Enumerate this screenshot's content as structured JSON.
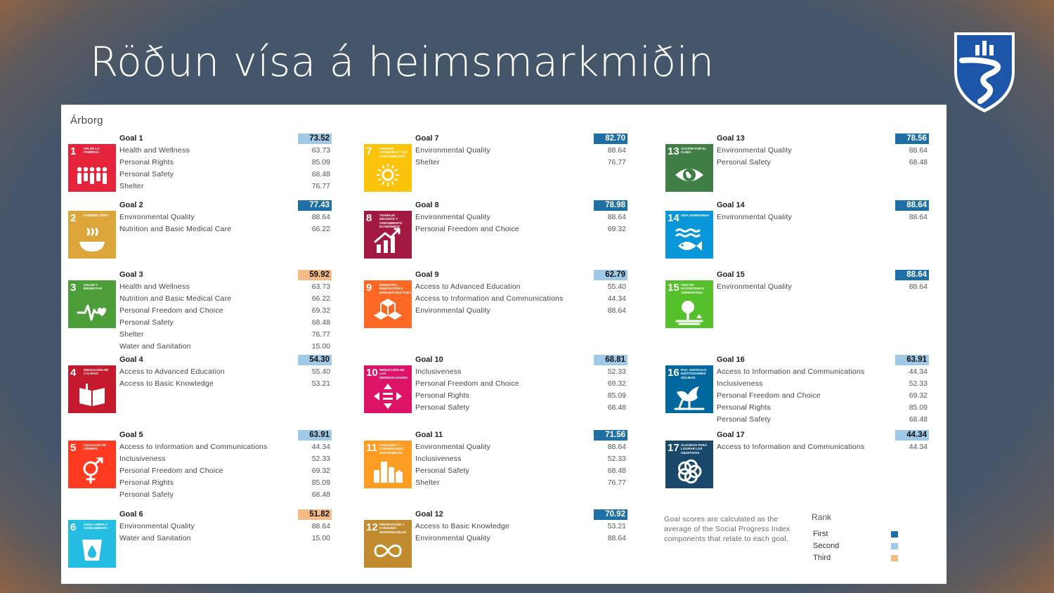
{
  "slide": {
    "title": "Röðun vísa á heimsmarkmiðin"
  },
  "panel": {
    "title": "Árborg"
  },
  "colors": {
    "rank1": "#1f6fa7",
    "rank2": "#9fc9e6",
    "rank3": "#f5bb86"
  },
  "goals": [
    {
      "name": "Goal 1",
      "score": "73.52",
      "rank": 2,
      "icon_num": "1",
      "icon_caption": "Fin de la pobreza",
      "icon_color": "#e5243b",
      "icon": "people-icon",
      "components": [
        {
          "label": "Health and Wellness",
          "value": "63.73"
        },
        {
          "label": "Personal Rights",
          "value": "85.09"
        },
        {
          "label": "Personal Safety",
          "value": "68.48"
        },
        {
          "label": "Shelter",
          "value": "76.77"
        }
      ]
    },
    {
      "name": "Goal 2",
      "score": "77.43",
      "rank": 1,
      "icon_num": "2",
      "icon_caption": "Hambre cero",
      "icon_color": "#dda63a",
      "icon": "food-bowl-icon",
      "components": [
        {
          "label": "Environmental Quality",
          "value": "88.64"
        },
        {
          "label": "Nutrition and Basic Medical Care",
          "value": "66.22"
        }
      ]
    },
    {
      "name": "Goal 3",
      "score": "59.92",
      "rank": 3,
      "icon_num": "3",
      "icon_caption": "Salud y bienestar",
      "icon_color": "#4c9f38",
      "icon": "heartbeat-icon",
      "components": [
        {
          "label": "Health and Wellness",
          "value": "63.73"
        },
        {
          "label": "Nutrition and Basic Medical Care",
          "value": "66.22"
        },
        {
          "label": "Personal Freedom and Choice",
          "value": "69.32"
        },
        {
          "label": "Personal Safety",
          "value": "68.48"
        },
        {
          "label": "Shelter",
          "value": "76.77"
        },
        {
          "label": "Water and Sanitation",
          "value": "15.00"
        }
      ]
    },
    {
      "name": "Goal 4",
      "score": "54.30",
      "rank": 2,
      "icon_num": "4",
      "icon_caption": "Educación de calidad",
      "icon_color": "#c5192d",
      "icon": "book-icon",
      "components": [
        {
          "label": "Access to Advanced Education",
          "value": "55.40"
        },
        {
          "label": "Access to Basic Knowledge",
          "value": "53.21"
        }
      ]
    },
    {
      "name": "Goal 5",
      "score": "63.91",
      "rank": 2,
      "icon_num": "5",
      "icon_caption": "Igualdad de género",
      "icon_color": "#ff3a21",
      "icon": "gender-icon",
      "components": [
        {
          "label": "Access to Information and Communications",
          "value": "44.34"
        },
        {
          "label": "Inclusiveness",
          "value": "52.33"
        },
        {
          "label": "Personal Freedom and Choice",
          "value": "69.32"
        },
        {
          "label": "Personal Rights",
          "value": "85.09"
        },
        {
          "label": "Personal Safety",
          "value": "68.48"
        }
      ]
    },
    {
      "name": "Goal 6",
      "score": "51.82",
      "rank": 3,
      "icon_num": "6",
      "icon_caption": "Agua limpia y saneamiento",
      "icon_color": "#26bde2",
      "icon": "water-drop-icon",
      "components": [
        {
          "label": "Environmental Quality",
          "value": "88.64"
        },
        {
          "label": "Water and Sanitation",
          "value": "15.00"
        }
      ]
    },
    {
      "name": "Goal 7",
      "score": "82.70",
      "rank": 1,
      "icon_num": "7",
      "icon_caption": "Energía asequible y no contaminante",
      "icon_color": "#fcc30b",
      "icon": "sun-icon",
      "components": [
        {
          "label": "Environmental Quality",
          "value": "88.64"
        },
        {
          "label": "Shelter",
          "value": "76.77"
        }
      ]
    },
    {
      "name": "Goal 8",
      "score": "78.98",
      "rank": 1,
      "icon_num": "8",
      "icon_caption": "Trabajo decente y crecimiento económico",
      "icon_color": "#a21942",
      "icon": "growth-chart-icon",
      "components": [
        {
          "label": "Environmental Quality",
          "value": "88.64"
        },
        {
          "label": "Personal Freedom and Choice",
          "value": "69.32"
        }
      ]
    },
    {
      "name": "Goal 9",
      "score": "62.79",
      "rank": 2,
      "icon_num": "9",
      "icon_caption": "Industria, innovación e infraestructura",
      "icon_color": "#fd6925",
      "icon": "cubes-icon",
      "components": [
        {
          "label": "Access to Advanced Education",
          "value": "55.40"
        },
        {
          "label": "Access to Information and Communications",
          "value": "44.34"
        },
        {
          "label": "Environmental Quality",
          "value": "88.64"
        }
      ]
    },
    {
      "name": "Goal 10",
      "score": "68.81",
      "rank": 2,
      "icon_num": "10",
      "icon_caption": "Reducción de las desigualdades",
      "icon_color": "#dd1367",
      "icon": "equality-icon",
      "components": [
        {
          "label": "Inclusiveness",
          "value": "52.33"
        },
        {
          "label": "Personal Freedom and Choice",
          "value": "69.32"
        },
        {
          "label": "Personal Rights",
          "value": "85.09"
        },
        {
          "label": "Personal Safety",
          "value": "68.48"
        }
      ]
    },
    {
      "name": "Goal 11",
      "score": "71.56",
      "rank": 1,
      "icon_num": "11",
      "icon_caption": "Ciudades y comunidades sostenibles",
      "icon_color": "#fd9d24",
      "icon": "city-icon",
      "components": [
        {
          "label": "Environmental Quality",
          "value": "88.64"
        },
        {
          "label": "Inclusiveness",
          "value": "52.33"
        },
        {
          "label": "Personal Safety",
          "value": "68.48"
        },
        {
          "label": "Shelter",
          "value": "76.77"
        }
      ]
    },
    {
      "name": "Goal 12",
      "score": "70.92",
      "rank": 1,
      "icon_num": "12",
      "icon_caption": "Producción y consumo responsables",
      "icon_color": "#bf8b2e",
      "icon": "infinity-icon",
      "components": [
        {
          "label": "Access to Basic Knowledge",
          "value": "53.21"
        },
        {
          "label": "Environmental Quality",
          "value": "88.64"
        }
      ]
    },
    {
      "name": "Goal 13",
      "score": "78.56",
      "rank": 1,
      "icon_num": "13",
      "icon_caption": "Acción por el clima",
      "icon_color": "#3f7e44",
      "icon": "eye-globe-icon",
      "components": [
        {
          "label": "Environmental Quality",
          "value": "88.64"
        },
        {
          "label": "Personal Safety",
          "value": "68.48"
        }
      ]
    },
    {
      "name": "Goal 14",
      "score": "88.64",
      "rank": 1,
      "icon_num": "14",
      "icon_caption": "Vida submarina",
      "icon_color": "#0a97d9",
      "icon": "fish-icon",
      "components": [
        {
          "label": "Environmental Quality",
          "value": "88.64"
        }
      ]
    },
    {
      "name": "Goal 15",
      "score": "88.64",
      "rank": 1,
      "icon_num": "15",
      "icon_caption": "Vida de ecosistemas terrestres",
      "icon_color": "#56c02b",
      "icon": "tree-icon",
      "components": [
        {
          "label": "Environmental Quality",
          "value": "88.64"
        }
      ]
    },
    {
      "name": "Goal 16",
      "score": "63.91",
      "rank": 2,
      "icon_num": "16",
      "icon_caption": "Paz, justicia e instituciones sólidas",
      "icon_color": "#00689d",
      "icon": "dove-icon",
      "components": [
        {
          "label": "Access to Information and Communications",
          "value": "44.34"
        },
        {
          "label": "Inclusiveness",
          "value": "52.33"
        },
        {
          "label": "Personal Freedom and Choice",
          "value": "69.32"
        },
        {
          "label": "Personal Rights",
          "value": "85.09"
        },
        {
          "label": "Personal Safety",
          "value": "68.48"
        }
      ]
    },
    {
      "name": "Goal 17",
      "score": "44.34",
      "rank": 2,
      "icon_num": "17",
      "icon_caption": "Alianzas para lograr los objetivos",
      "icon_color": "#19486a",
      "icon": "partnership-rings-icon",
      "components": [
        {
          "label": "Access to Information and Communications",
          "value": "44.34"
        }
      ]
    }
  ],
  "footnote": "Goal scores are calculated as the average of the Social Progress Index components that relate to each goal.",
  "legend": {
    "title": "Rank",
    "items": [
      {
        "label": "First",
        "color": "#1f6fa7"
      },
      {
        "label": "Second",
        "color": "#9fc9e6"
      },
      {
        "label": "Third",
        "color": "#f5bb86"
      }
    ]
  }
}
